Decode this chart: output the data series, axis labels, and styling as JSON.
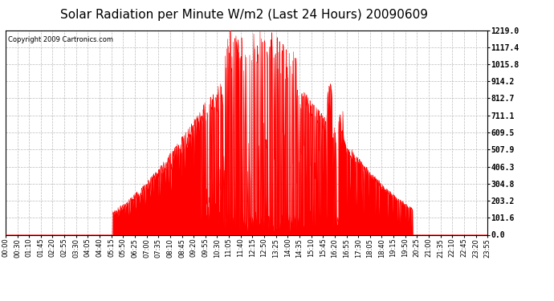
{
  "title": "Solar Radiation per Minute W/m2 (Last 24 Hours) 20090609",
  "copyright": "Copyright 2009 Cartronics.com",
  "bar_color": "#FF0000",
  "background_color": "#FFFFFF",
  "grid_color": "#AAAAAA",
  "dashed_line_color": "#FF0000",
  "yticks": [
    0.0,
    101.6,
    203.2,
    304.8,
    406.3,
    507.9,
    609.5,
    711.1,
    812.7,
    914.2,
    1015.8,
    1117.4,
    1219.0
  ],
  "ymax": 1219.0,
  "ymin": 0.0,
  "xtick_labels": [
    "00:00",
    "00:30",
    "01:10",
    "01:45",
    "02:20",
    "02:55",
    "03:30",
    "04:05",
    "04:40",
    "05:15",
    "05:50",
    "06:25",
    "07:00",
    "07:35",
    "08:10",
    "08:45",
    "09:20",
    "09:55",
    "10:30",
    "11:05",
    "11:40",
    "12:15",
    "12:50",
    "13:25",
    "14:00",
    "14:35",
    "15:10",
    "15:45",
    "16:20",
    "16:55",
    "17:30",
    "18:05",
    "18:40",
    "19:15",
    "19:50",
    "20:25",
    "21:00",
    "21:35",
    "22:10",
    "22:45",
    "23:20",
    "23:55"
  ],
  "title_fontsize": 11,
  "copyright_fontsize": 6,
  "axis_fontsize": 6,
  "ytick_fontsize": 7
}
